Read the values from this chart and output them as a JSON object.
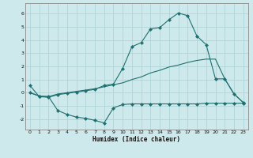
{
  "xlabel": "Humidex (Indice chaleur)",
  "xlim": [
    -0.5,
    23.5
  ],
  "ylim": [
    -2.8,
    6.8
  ],
  "yticks": [
    -2,
    -1,
    0,
    1,
    2,
    3,
    4,
    5,
    6
  ],
  "xticks": [
    0,
    1,
    2,
    3,
    4,
    5,
    6,
    7,
    8,
    9,
    10,
    11,
    12,
    13,
    14,
    15,
    16,
    17,
    18,
    19,
    20,
    21,
    22,
    23
  ],
  "bg_color": "#cee9eb",
  "grid_color": "#b0d4d8",
  "line_color": "#1e7070",
  "line1_x": [
    0,
    1,
    2,
    3,
    4,
    5,
    6,
    7,
    8,
    9,
    10,
    11,
    12,
    13,
    14,
    15,
    16,
    17,
    18,
    19,
    20,
    21,
    22,
    23
  ],
  "line1_y": [
    0.55,
    -0.3,
    -0.35,
    -0.15,
    -0.05,
    0.05,
    0.15,
    0.25,
    0.55,
    0.65,
    1.85,
    3.5,
    3.8,
    4.85,
    4.95,
    5.55,
    6.05,
    5.85,
    4.3,
    3.65,
    1.05,
    1.05,
    -0.1,
    -0.75
  ],
  "line2_x": [
    0,
    1,
    2,
    3,
    4,
    5,
    6,
    7,
    8,
    9,
    10,
    11,
    12,
    13,
    14,
    15,
    16,
    17,
    18,
    19,
    20,
    21,
    22,
    23
  ],
  "line2_y": [
    0.0,
    -0.25,
    -0.3,
    -0.1,
    0.0,
    0.1,
    0.2,
    0.3,
    0.45,
    0.6,
    0.75,
    1.0,
    1.2,
    1.5,
    1.7,
    1.95,
    2.1,
    2.3,
    2.45,
    2.55,
    2.55,
    1.05,
    -0.1,
    -0.75
  ],
  "line3_x": [
    0,
    1,
    2,
    3,
    4,
    5,
    6,
    7,
    8,
    9,
    10,
    11,
    12,
    13,
    14,
    15,
    16,
    17,
    18,
    19,
    20,
    21,
    22,
    23
  ],
  "line3_y": [
    0.0,
    -0.25,
    -0.3,
    -1.35,
    -1.65,
    -1.85,
    -1.95,
    -2.1,
    -2.3,
    -1.15,
    -0.9,
    -0.85,
    -0.85,
    -0.85,
    -0.85,
    -0.85,
    -0.85,
    -0.85,
    -0.85,
    -0.8,
    -0.8,
    -0.8,
    -0.8,
    -0.8
  ]
}
